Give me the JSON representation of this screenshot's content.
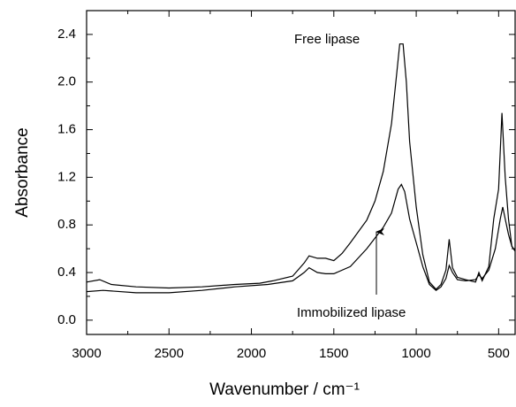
{
  "chart_data": {
    "type": "line",
    "xlabel": "Wavenumber / cm⁻¹",
    "ylabel": "Absorbance",
    "annotations": [
      "Free lipase",
      "Immobilized lipase"
    ],
    "xlim": [
      3000,
      400
    ],
    "ylim": [
      -0.12,
      2.6
    ],
    "xticks": [
      3000,
      2500,
      2000,
      1500,
      1000,
      500
    ],
    "yticks": [
      {
        "value": 0,
        "label": "0.0"
      },
      0.4,
      0.8,
      1.2,
      1.6,
      {
        "value": 2,
        "label": "2.0"
      },
      2.4
    ],
    "series": [
      {
        "name": "Free lipase",
        "color": "#000000",
        "x": [
          3000,
          2920,
          2850,
          2700,
          2500,
          2300,
          2100,
          1950,
          1870,
          1750,
          1680,
          1650,
          1600,
          1550,
          1500,
          1450,
          1400,
          1300,
          1250,
          1200,
          1150,
          1120,
          1100,
          1080,
          1060,
          1040,
          1000,
          960,
          920,
          880,
          850,
          820,
          800,
          780,
          750,
          700,
          640,
          620,
          600,
          560,
          530,
          500,
          480,
          460,
          440,
          420,
          400
        ],
        "values": [
          0.32,
          0.34,
          0.3,
          0.28,
          0.27,
          0.28,
          0.3,
          0.31,
          0.33,
          0.37,
          0.48,
          0.54,
          0.52,
          0.52,
          0.5,
          0.56,
          0.65,
          0.84,
          1.0,
          1.25,
          1.65,
          2.05,
          2.32,
          2.32,
          2.0,
          1.5,
          0.95,
          0.55,
          0.32,
          0.26,
          0.3,
          0.42,
          0.68,
          0.44,
          0.36,
          0.34,
          0.32,
          0.4,
          0.33,
          0.45,
          0.85,
          1.1,
          1.74,
          1.2,
          0.85,
          0.62,
          0.58
        ]
      },
      {
        "name": "Immobilized lipase",
        "color": "#000000",
        "x": [
          3000,
          2900,
          2700,
          2500,
          2300,
          2100,
          1900,
          1750,
          1680,
          1650,
          1600,
          1550,
          1500,
          1400,
          1300,
          1200,
          1150,
          1110,
          1090,
          1070,
          1040,
          1000,
          960,
          920,
          880,
          850,
          820,
          800,
          780,
          750,
          700,
          640,
          620,
          600,
          560,
          520,
          490,
          475,
          460,
          440,
          420,
          400
        ],
        "values": [
          0.24,
          0.25,
          0.23,
          0.23,
          0.25,
          0.28,
          0.3,
          0.33,
          0.4,
          0.44,
          0.4,
          0.39,
          0.39,
          0.45,
          0.6,
          0.78,
          0.9,
          1.1,
          1.14,
          1.08,
          0.85,
          0.65,
          0.45,
          0.3,
          0.25,
          0.28,
          0.35,
          0.46,
          0.4,
          0.34,
          0.33,
          0.34,
          0.38,
          0.35,
          0.42,
          0.6,
          0.85,
          0.95,
          0.85,
          0.72,
          0.62,
          0.58
        ]
      }
    ]
  }
}
